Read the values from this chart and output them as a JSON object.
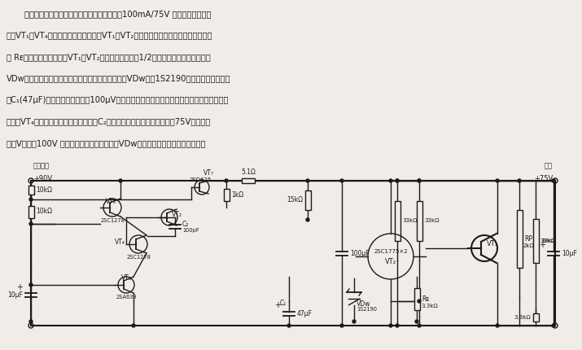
{
  "bg_color": "#f0ede8",
  "line_color": "#1a1a1a",
  "fig_width": 7.15,
  "fig_height": 4.3,
  "dpi": 100,
  "text_lines": [
    "采用互补差动放大器的稳压电源电路，是输出100mA/75V 的高压电源。电路",
    "中，VT₁和VT₄构成互补差动放大器，把VT₁和VT₂的差动输出变为单端输出。发射极电",
    "阻 Rᴇ値要这样确定，即使VT₁和VT₂的集电极电压接近1/2输出电压。基准电压稳压管",
    "VDᴡ要选用稳定度高、噪声低的稳压二极管，电路中VDᴡ采用1S2190，并在其两端并联电",
    "容C₁(47μF)，把输出噪声抑制在100μV以下。误差放大电路的增益过大，容易产生振荡，因",
    "此、在VT₄的集电极与基极之间接入电容C₂进行相位补偶。因输出电压高达75V，所以要",
    "选用VⳠ大于100V 的晶体管。基准电压稳压管VDᴡ的地线要靠近输出侧或者加粗。"
  ]
}
